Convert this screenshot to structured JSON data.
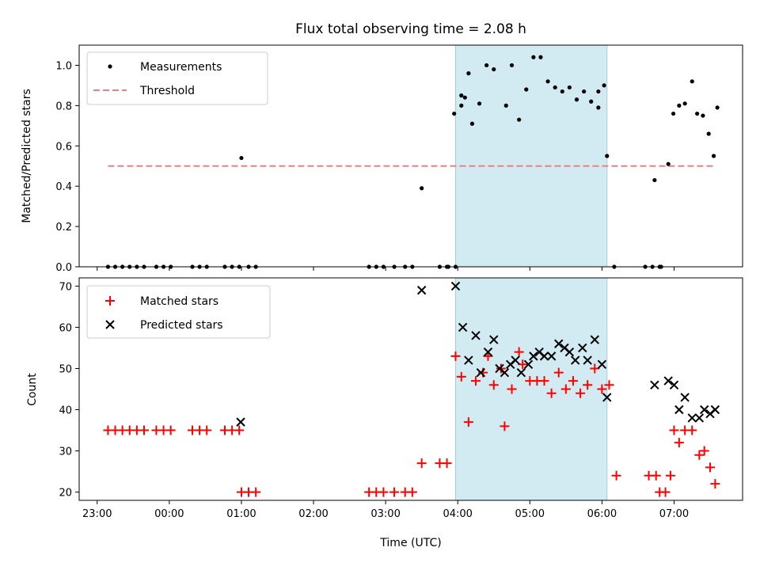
{
  "chart_data": [
    {
      "type": "scatter",
      "title": "Flux total observing time = 2.08 h",
      "xlabel": "",
      "ylabel": "Matched/Predicted stars",
      "xlim_hours": [
        22.75,
        31.95
      ],
      "ylim": [
        0,
        1.1
      ],
      "yticks": [
        0.0,
        0.2,
        0.4,
        0.6,
        0.8,
        1.0
      ],
      "ytick_labels": [
        "0.0",
        "0.2",
        "0.4",
        "0.6",
        "0.8",
        "1.0"
      ],
      "shaded_span_hours": [
        27.97,
        30.07
      ],
      "legend_position": "upper-left",
      "series": [
        {
          "name": "Measurements",
          "marker": "dot",
          "color": "#000000",
          "x_hours": [
            23.15,
            23.25,
            23.35,
            23.45,
            23.55,
            23.65,
            23.82,
            23.92,
            24.02,
            24.32,
            24.42,
            24.52,
            24.77,
            24.87,
            24.97,
            25.0,
            25.1,
            25.2,
            27.75,
            27.85,
            27.95,
            28.05,
            28.2,
            28.3,
            28.4,
            28.5,
            28.67,
            28.75,
            28.85,
            28.95,
            29.05,
            29.15,
            29.25,
            29.35,
            29.45,
            29.55,
            29.65,
            29.75,
            29.85,
            29.95,
            26.77,
            26.87,
            26.97,
            27.12,
            27.27,
            27.37,
            27.5,
            27.87,
            27.97,
            28.05,
            28.1,
            28.15,
            30.07,
            30.17,
            30.6,
            30.7,
            30.8,
            30.92,
            30.99,
            31.07,
            31.15,
            31.25,
            31.32,
            31.4,
            31.48,
            31.55,
            31.6,
            30.73,
            30.82
          ],
          "y": [
            0,
            0,
            0,
            0,
            0,
            0,
            0,
            0,
            0,
            0,
            0,
            0,
            0,
            0,
            0,
            0.54,
            0,
            0,
            0,
            0,
            0.76,
            0.8,
            0.71,
            0.81,
            1.0,
            0.98,
            0.8,
            1.0,
            0.73,
            0.88,
            1.04,
            1.04,
            0.92,
            0.89,
            0.87,
            0.89,
            0.83,
            0.87,
            0.82,
            0.87,
            0,
            0,
            0,
            0,
            0,
            0,
            0.39,
            0,
            0,
            0.85,
            0.84,
            0.96,
            0.55,
            0,
            0,
            0,
            0,
            0.51,
            0.76,
            0.8,
            0.81,
            0.92,
            0.76,
            0.75,
            0.66,
            0.55,
            0.79,
            0.43,
            0
          ],
          "extra_points": [
            [
              29.95,
              0.79
            ],
            [
              30.03,
              0.9
            ]
          ]
        },
        {
          "name": "Threshold",
          "marker": "dashed-line",
          "color": "#f08080",
          "x_hours": [
            23.15,
            31.55
          ],
          "y": [
            0.5,
            0.5
          ]
        }
      ]
    },
    {
      "type": "scatter",
      "title": "",
      "xlabel": "Time (UTC)",
      "ylabel": "Count",
      "xlim_hours": [
        22.75,
        31.95
      ],
      "ylim": [
        18,
        72
      ],
      "yticks": [
        20,
        30,
        40,
        50,
        60,
        70
      ],
      "ytick_labels": [
        "20",
        "30",
        "40",
        "50",
        "60",
        "70"
      ],
      "xticks_hours": [
        23,
        24,
        25,
        26,
        27,
        28,
        29,
        30,
        31
      ],
      "xtick_labels": [
        "23:00",
        "00:00",
        "01:00",
        "02:00",
        "03:00",
        "04:00",
        "05:00",
        "06:00",
        "07:00"
      ],
      "shaded_span_hours": [
        27.97,
        30.07
      ],
      "legend_position": "upper-left",
      "series": [
        {
          "name": "Matched stars",
          "marker": "plus",
          "color": "#ff0000",
          "x_hours": [
            23.15,
            23.25,
            23.35,
            23.45,
            23.55,
            23.65,
            23.82,
            23.92,
            24.02,
            24.32,
            24.42,
            24.52,
            24.77,
            24.87,
            24.97,
            25.0,
            25.1,
            25.2,
            26.77,
            26.87,
            26.97,
            27.12,
            27.27,
            27.37,
            27.5,
            27.75,
            27.85,
            27.97,
            28.05,
            28.15,
            28.25,
            28.35,
            28.42,
            28.5,
            28.6,
            28.65,
            28.75,
            28.85,
            28.9,
            29.0,
            29.1,
            29.2,
            29.3,
            29.4,
            29.5,
            29.6,
            29.7,
            29.8,
            29.9,
            30.0,
            30.1,
            30.2,
            30.65,
            30.75,
            30.8,
            30.88,
            30.95,
            31.0,
            31.07,
            31.15,
            31.25,
            31.35,
            31.42,
            31.5,
            31.57
          ],
          "y": [
            35,
            35,
            35,
            35,
            35,
            35,
            35,
            35,
            35,
            35,
            35,
            35,
            35,
            35,
            35,
            20,
            20,
            20,
            20,
            20,
            20,
            20,
            20,
            20,
            27,
            27,
            27,
            53,
            48,
            37,
            47,
            49,
            53,
            46,
            50,
            36,
            45,
            54,
            51,
            47,
            47,
            47,
            44,
            49,
            45,
            47,
            44,
            46,
            50,
            45,
            46,
            24,
            24,
            24,
            20,
            20,
            24,
            35,
            32,
            35,
            35,
            29,
            30,
            26,
            22
          ]
        },
        {
          "name": "Predicted stars",
          "marker": "x",
          "color": "#000000",
          "x_hours": [
            24.99,
            27.5,
            27.97,
            28.07,
            28.15,
            28.25,
            28.32,
            28.42,
            28.5,
            28.58,
            28.65,
            28.73,
            28.8,
            28.88,
            28.98,
            29.05,
            29.13,
            29.2,
            29.3,
            29.4,
            29.48,
            29.55,
            29.63,
            29.73,
            29.8,
            29.9,
            30.0,
            30.07,
            30.73,
            30.92,
            31.0,
            31.07,
            31.15,
            31.25,
            31.35,
            31.42,
            31.5,
            31.57
          ],
          "y": [
            37,
            69,
            70,
            60,
            52,
            58,
            49,
            54,
            57,
            50,
            49,
            51,
            52,
            49,
            51,
            53,
            54,
            53,
            53,
            56,
            55,
            54,
            52,
            55,
            52,
            57,
            51,
            43,
            46,
            47,
            46,
            40,
            43,
            38,
            38,
            40,
            39,
            40
          ]
        }
      ]
    }
  ],
  "legend": {
    "top": [
      "Measurements",
      "Threshold"
    ],
    "bottom": [
      "Matched stars",
      "Predicted stars"
    ]
  }
}
